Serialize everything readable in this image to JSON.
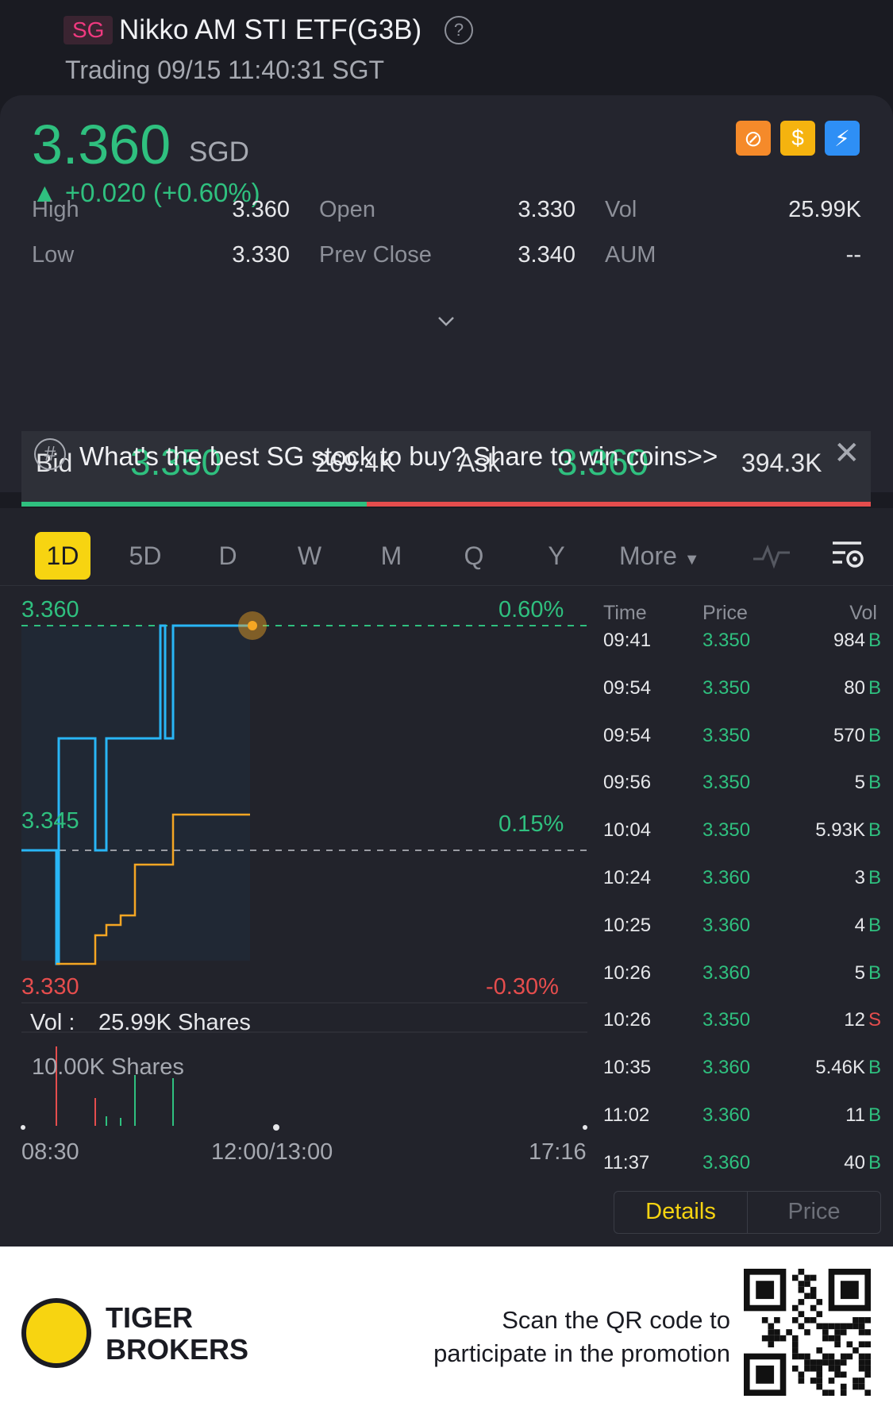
{
  "header": {
    "exchange_tag": "SG",
    "title": "Nikko AM STI ETF(G3B)",
    "status": "Trading 09/15 11:40:31 SGT"
  },
  "quote": {
    "price": "3.360",
    "currency": "SGD",
    "change": "▲ +0.020 (+0.60%)",
    "stats": {
      "high_label": "High",
      "high": "3.360",
      "open_label": "Open",
      "open": "3.330",
      "vol_label": "Vol",
      "vol": "25.99K",
      "low_label": "Low",
      "low": "3.330",
      "prev_close_label": "Prev Close",
      "prev_close": "3.340",
      "aum_label": "AUM",
      "aum": "--"
    },
    "bid_label": "Bid",
    "bid": "3.350",
    "bid_size": "269.4K",
    "ask_label": "Ask",
    "ask": "3.360",
    "ask_size": "394.3K"
  },
  "promo": {
    "text": "What's the best SG stock to buy? Share to win coins>>"
  },
  "tabs": [
    "1D",
    "5D",
    "D",
    "W",
    "M",
    "Q",
    "Y"
  ],
  "tabs_more": "More",
  "chart": {
    "y_top": "3.360",
    "y_mid": "3.345",
    "y_bot": "3.330",
    "pct_top": "0.60%",
    "pct_mid": "0.15%",
    "pct_bot": "-0.30%",
    "vol_label": "Vol :",
    "vol_value": "25.99K Shares",
    "vol_scale": "10.00K Shares",
    "x_start": "08:30",
    "x_mid": "12:00/13:00",
    "x_end": "17:16"
  },
  "trades": {
    "headers": {
      "time": "Time",
      "price": "Price",
      "vol": "Vol"
    },
    "rows": [
      {
        "time": "09:41",
        "price": "3.350",
        "vol": "984",
        "side": "B"
      },
      {
        "time": "09:54",
        "price": "3.350",
        "vol": "80",
        "side": "B"
      },
      {
        "time": "09:54",
        "price": "3.350",
        "vol": "570",
        "side": "B"
      },
      {
        "time": "09:56",
        "price": "3.350",
        "vol": "5",
        "side": "B"
      },
      {
        "time": "10:04",
        "price": "3.350",
        "vol": "5.93K",
        "side": "B"
      },
      {
        "time": "10:24",
        "price": "3.360",
        "vol": "3",
        "side": "B"
      },
      {
        "time": "10:25",
        "price": "3.360",
        "vol": "4",
        "side": "B"
      },
      {
        "time": "10:26",
        "price": "3.360",
        "vol": "5",
        "side": "B"
      },
      {
        "time": "10:26",
        "price": "3.350",
        "vol": "12",
        "side": "S"
      },
      {
        "time": "10:35",
        "price": "3.360",
        "vol": "5.46K",
        "side": "B"
      },
      {
        "time": "11:02",
        "price": "3.360",
        "vol": "11",
        "side": "B"
      },
      {
        "time": "11:37",
        "price": "3.360",
        "vol": "40",
        "side": "B"
      }
    ],
    "details_label": "Details",
    "price_label": "Price"
  },
  "footer": {
    "brand_line1": "TIGER",
    "brand_line2": "BROKERS",
    "scan_line1": "Scan the QR code to",
    "scan_line2": "participate in the promotion"
  },
  "colors": {
    "up": "#2fc07f",
    "down": "#e54d4d",
    "accent": "#f7d411",
    "price_line": "#29b6f6",
    "avg_line": "#f5a623"
  }
}
